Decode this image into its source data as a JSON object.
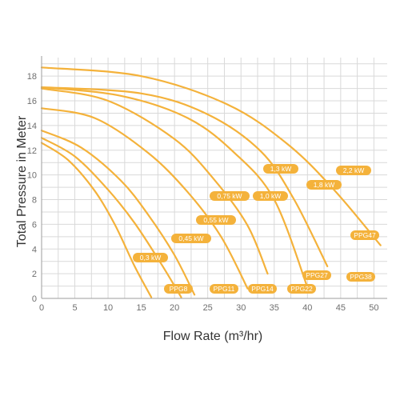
{
  "chart_data": {
    "type": "line",
    "title": "",
    "xlabel": "Flow Rate (m³/hr)",
    "ylabel": "Total Pressure in Meter",
    "xlim": [
      0,
      52
    ],
    "ylim": [
      0,
      19.5
    ],
    "x_ticks": [
      0,
      5,
      10,
      15,
      20,
      25,
      30,
      35,
      40,
      45,
      50
    ],
    "y_ticks": [
      0,
      2,
      4,
      6,
      8,
      10,
      12,
      14,
      16,
      18
    ],
    "grid": true,
    "color": "#f4b23b",
    "series": [
      {
        "name": "PPG8",
        "power": "0,3 kW",
        "x": [
          0,
          4,
          8,
          11,
          14,
          16.5
        ],
        "y": [
          12.6,
          11.2,
          8.7,
          6.0,
          2.6,
          0.1
        ]
      },
      {
        "name": "PPG11",
        "power": "0,45 kW",
        "x": [
          0,
          5,
          10,
          14,
          18,
          21
        ],
        "y": [
          13.0,
          11.5,
          8.8,
          6.1,
          2.8,
          0.1
        ]
      },
      {
        "name": "PPG14",
        "power": "0,55 kW",
        "x": [
          0,
          6,
          12,
          16,
          20,
          23
        ],
        "y": [
          13.6,
          12.2,
          9.5,
          6.8,
          3.5,
          0.3
        ]
      },
      {
        "name": "PPG22",
        "power": "0,75 kW",
        "x": [
          0,
          8,
          16,
          22,
          27,
          31
        ],
        "y": [
          15.4,
          14.6,
          11.8,
          8.6,
          5.0,
          0.8
        ]
      },
      {
        "name": "PPG27",
        "power": "1,0 kW",
        "x": [
          0,
          10,
          20,
          26,
          31,
          34
        ],
        "y": [
          17.0,
          16.0,
          12.9,
          9.6,
          5.9,
          2.0
        ]
      },
      {
        "name": "PPG38",
        "power": "1,3 kW",
        "x": [
          0,
          12,
          22,
          29,
          35,
          40
        ],
        "y": [
          17.1,
          16.4,
          14.6,
          11.8,
          8.0,
          0.9
        ]
      },
      {
        "name": "PPG47",
        "power": "1,8 kW",
        "x": [
          0,
          15,
          25,
          33,
          38,
          43
        ],
        "y": [
          17.1,
          16.6,
          14.9,
          11.9,
          8.0,
          2.6
        ]
      },
      {
        "name": "",
        "power": "2,2 kW",
        "x": [
          0,
          15,
          28,
          37,
          44,
          51
        ],
        "y": [
          18.7,
          18.0,
          15.7,
          12.5,
          8.8,
          4.3
        ]
      }
    ]
  },
  "labels": {
    "PPG8": "PPG8",
    "PPG11": "PPG11",
    "PPG14": "PPG14",
    "PPG22": "PPG22",
    "PPG27": "PPG27",
    "PPG38": "PPG38",
    "PPG47": "PPG47",
    "p03": "0,3 kW",
    "p045": "0,45 kW",
    "p055": "0,55 kW",
    "p075": "0,75 kW",
    "p10": "1,0 kW",
    "p13": "1,3 kW",
    "p18": "1,8 kW",
    "p22": "2,2 kW"
  }
}
